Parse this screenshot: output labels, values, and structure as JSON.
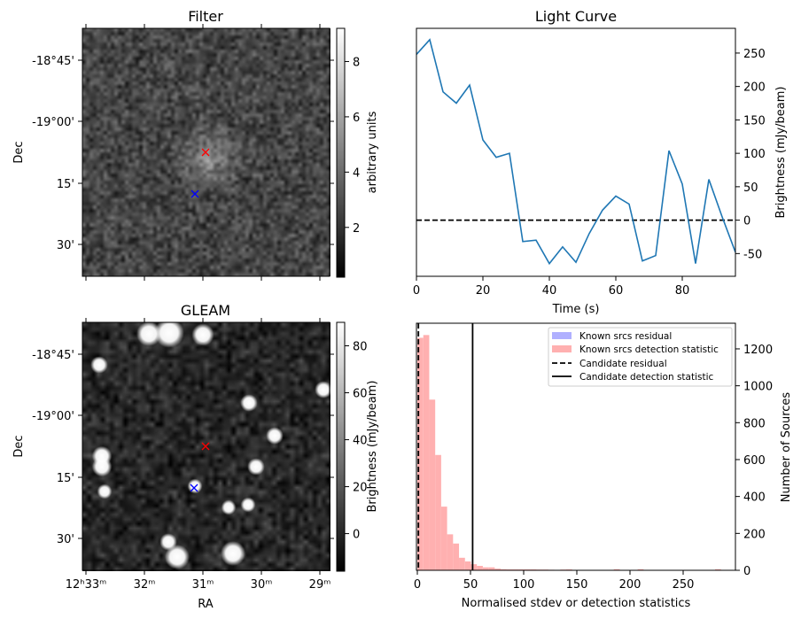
{
  "colors": {
    "line": "#1f77b4",
    "candidate_marker": "#ff0000",
    "known_marker": "#0000ff",
    "hist_detection": "#ffb0b0",
    "hist_residual": "#b0b0ff"
  },
  "filter_panel": {
    "title": "Filter",
    "ylabel": "Dec",
    "dec_tick_labels": [
      "-18°45'",
      "-19°00'",
      "15'",
      "30'"
    ],
    "colorbar": {
      "label": "arbitrary units",
      "ticks": [
        2,
        4,
        6,
        8
      ],
      "range": [
        0.2,
        9.2
      ]
    }
  },
  "gleam_panel": {
    "title": "GLEAM",
    "xlabel": "RA",
    "ylabel": "Dec",
    "dec_tick_labels": [
      "-18°45'",
      "-19°00'",
      "15'",
      "30'"
    ],
    "ra_tick_labels": [
      "12ʰ33ᵐ",
      "32ᵐ",
      "31ᵐ",
      "30ᵐ",
      "29ᵐ"
    ],
    "colorbar": {
      "label": "Brightness (mJy/beam)",
      "ticks": [
        0,
        20,
        40,
        60,
        80
      ],
      "range": [
        -16,
        90
      ]
    }
  },
  "chart_data": [
    {
      "type": "line",
      "title": "Light Curve",
      "xlabel": "Time (s)",
      "ylabel": "Brightness (mJy/beam)",
      "x": [
        0,
        4,
        8,
        12,
        16,
        20,
        24,
        28,
        32,
        36,
        40,
        44,
        48,
        52,
        56,
        60,
        64,
        68,
        72,
        76,
        80,
        84,
        88,
        92,
        96
      ],
      "series": [
        {
          "name": "light curve",
          "values": [
            248,
            270,
            192,
            175,
            202,
            120,
            94,
            100,
            -32,
            -30,
            -65,
            -40,
            -63,
            -20,
            15,
            36,
            24,
            -61,
            -53,
            104,
            54,
            -65,
            61,
            5,
            -48
          ]
        }
      ],
      "reference_line": {
        "y": 0,
        "style": "dashed"
      },
      "xlim": [
        0,
        96
      ],
      "ylim": [
        -84,
        287
      ],
      "xticks": [
        0,
        20,
        40,
        60,
        80
      ],
      "yticks": [
        -50,
        0,
        50,
        100,
        150,
        200,
        250
      ],
      "yaxis_side": "right",
      "grid": false
    },
    {
      "type": "bar",
      "subtype": "histogram",
      "xlabel": "Normalised stdev or detection statistics",
      "ylabel": "Number of Sources",
      "bin_start": 0,
      "bin_width": 5.6,
      "series": [
        {
          "name": "Known srcs residual",
          "values": []
        },
        {
          "name": "Known srcs detection statistic",
          "values": [
            1260,
            1275,
            925,
            625,
            345,
            195,
            145,
            68,
            48,
            33,
            24,
            16,
            16,
            9,
            6,
            5,
            5,
            5,
            5,
            5,
            4,
            4,
            3,
            0,
            4,
            5,
            0,
            0,
            0,
            0,
            0,
            0,
            0,
            6,
            0,
            0,
            0,
            6,
            0,
            0,
            0,
            0,
            0,
            0,
            0,
            0,
            0,
            0,
            0,
            0,
            6,
            0,
            0,
            0
          ]
        }
      ],
      "vlines": [
        {
          "name": "Candidate residual",
          "x": 1,
          "style": "dashed"
        },
        {
          "name": "Candidate detection statistic",
          "x": 52,
          "style": "solid"
        }
      ],
      "legend": [
        "Known srcs residual",
        "Known srcs detection statistic",
        "Candidate residual",
        "Candidate detection statistic"
      ],
      "legend_position": "top-right",
      "xlim": [
        0,
        299
      ],
      "ylim": [
        0,
        1339
      ],
      "xticks": [
        0,
        50,
        100,
        150,
        200,
        250
      ],
      "yticks": [
        0,
        200,
        400,
        600,
        800,
        1000,
        1200
      ],
      "yaxis_side": "right",
      "grid": false
    }
  ]
}
